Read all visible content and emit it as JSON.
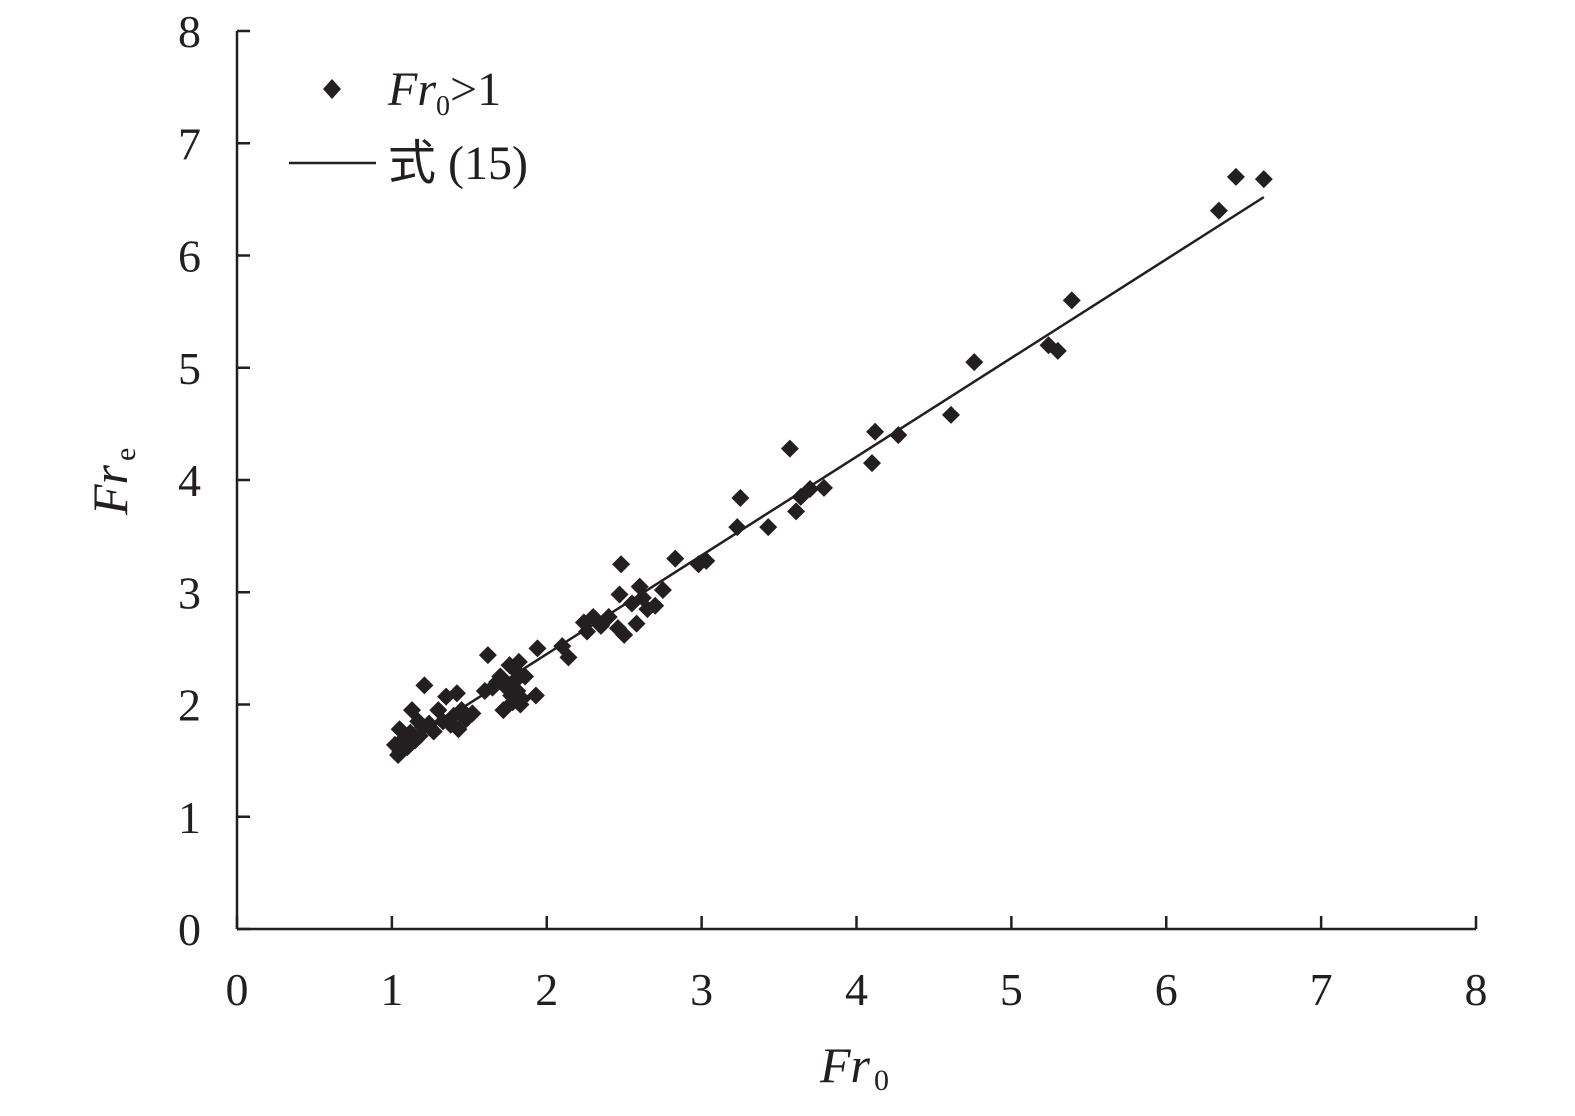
{
  "colors": {
    "ink": "#231f20",
    "background": "#ffffff"
  },
  "chart_data": {
    "type": "scatter",
    "xlabel": "Fr0",
    "xlabel_parts": {
      "main": "Fr",
      "sub": "0"
    },
    "ylabel": "Fre",
    "ylabel_parts": {
      "main": "Fr",
      "sub": "e"
    },
    "xlim": [
      0,
      8
    ],
    "ylim": [
      0,
      8
    ],
    "x_ticks": [
      "0",
      "1",
      "2",
      "3",
      "4",
      "5",
      "6",
      "7",
      "8"
    ],
    "y_ticks": [
      "0",
      "1",
      "2",
      "3",
      "4",
      "5",
      "6",
      "7",
      "8"
    ],
    "grid": false,
    "legend_position": "top-left",
    "legend": [
      {
        "kind": "marker",
        "marker": "diamond",
        "text_main": "Fr",
        "text_sub": "0",
        "text_rest": ">1"
      },
      {
        "kind": "line",
        "text": "式 (15)"
      }
    ],
    "series": [
      {
        "name": "Fr0>1",
        "marker": "diamond",
        "points": [
          [
            1.02,
            1.64
          ],
          [
            1.04,
            1.55
          ],
          [
            1.06,
            1.6
          ],
          [
            1.05,
            1.78
          ],
          [
            1.08,
            1.7
          ],
          [
            1.1,
            1.62
          ],
          [
            1.12,
            1.75
          ],
          [
            1.13,
            1.95
          ],
          [
            1.15,
            1.68
          ],
          [
            1.17,
            1.85
          ],
          [
            1.18,
            1.72
          ],
          [
            1.2,
            1.8
          ],
          [
            1.21,
            2.17
          ],
          [
            1.24,
            1.83
          ],
          [
            1.27,
            1.76
          ],
          [
            1.3,
            1.95
          ],
          [
            1.33,
            1.85
          ],
          [
            1.35,
            2.07
          ],
          [
            1.38,
            1.82
          ],
          [
            1.4,
            1.9
          ],
          [
            1.42,
            2.1
          ],
          [
            1.43,
            1.78
          ],
          [
            1.45,
            1.95
          ],
          [
            1.48,
            1.87
          ],
          [
            1.52,
            1.92
          ],
          [
            1.6,
            2.12
          ],
          [
            1.62,
            2.44
          ],
          [
            1.65,
            2.15
          ],
          [
            1.68,
            2.2
          ],
          [
            1.7,
            2.25
          ],
          [
            1.72,
            1.95
          ],
          [
            1.74,
            2.15
          ],
          [
            1.76,
            2.35
          ],
          [
            1.77,
            2.08
          ],
          [
            1.78,
            2.02
          ],
          [
            1.79,
            2.2
          ],
          [
            1.8,
            2.3
          ],
          [
            1.81,
            2.12
          ],
          [
            1.82,
            2.38
          ],
          [
            1.83,
            2.0
          ],
          [
            1.84,
            2.05
          ],
          [
            1.86,
            2.25
          ],
          [
            1.93,
            2.08
          ],
          [
            1.94,
            2.5
          ],
          [
            2.1,
            2.52
          ],
          [
            2.14,
            2.42
          ],
          [
            2.24,
            2.73
          ],
          [
            2.26,
            2.65
          ],
          [
            2.3,
            2.78
          ],
          [
            2.35,
            2.7
          ],
          [
            2.4,
            2.78
          ],
          [
            2.46,
            2.68
          ],
          [
            2.47,
            2.98
          ],
          [
            2.48,
            3.25
          ],
          [
            2.5,
            2.62
          ],
          [
            2.55,
            2.9
          ],
          [
            2.58,
            2.72
          ],
          [
            2.6,
            3.05
          ],
          [
            2.62,
            2.95
          ],
          [
            2.65,
            2.85
          ],
          [
            2.7,
            2.88
          ],
          [
            2.75,
            3.02
          ],
          [
            2.83,
            3.3
          ],
          [
            2.98,
            3.25
          ],
          [
            3.03,
            3.28
          ],
          [
            3.23,
            3.58
          ],
          [
            3.25,
            3.84
          ],
          [
            3.43,
            3.58
          ],
          [
            3.57,
            4.28
          ],
          [
            3.61,
            3.72
          ],
          [
            3.64,
            3.85
          ],
          [
            3.7,
            3.92
          ],
          [
            3.79,
            3.93
          ],
          [
            4.1,
            4.15
          ],
          [
            4.12,
            4.43
          ],
          [
            4.27,
            4.4
          ],
          [
            4.61,
            4.58
          ],
          [
            4.76,
            5.05
          ],
          [
            5.24,
            5.2
          ],
          [
            5.3,
            5.15
          ],
          [
            5.39,
            5.6
          ],
          [
            6.34,
            6.4
          ],
          [
            6.45,
            6.7
          ],
          [
            6.63,
            6.68
          ]
        ]
      }
    ],
    "fit_line": {
      "name": "式 (15)",
      "x": [
        1.0,
        6.63
      ],
      "y": [
        1.57,
        6.52
      ]
    }
  }
}
